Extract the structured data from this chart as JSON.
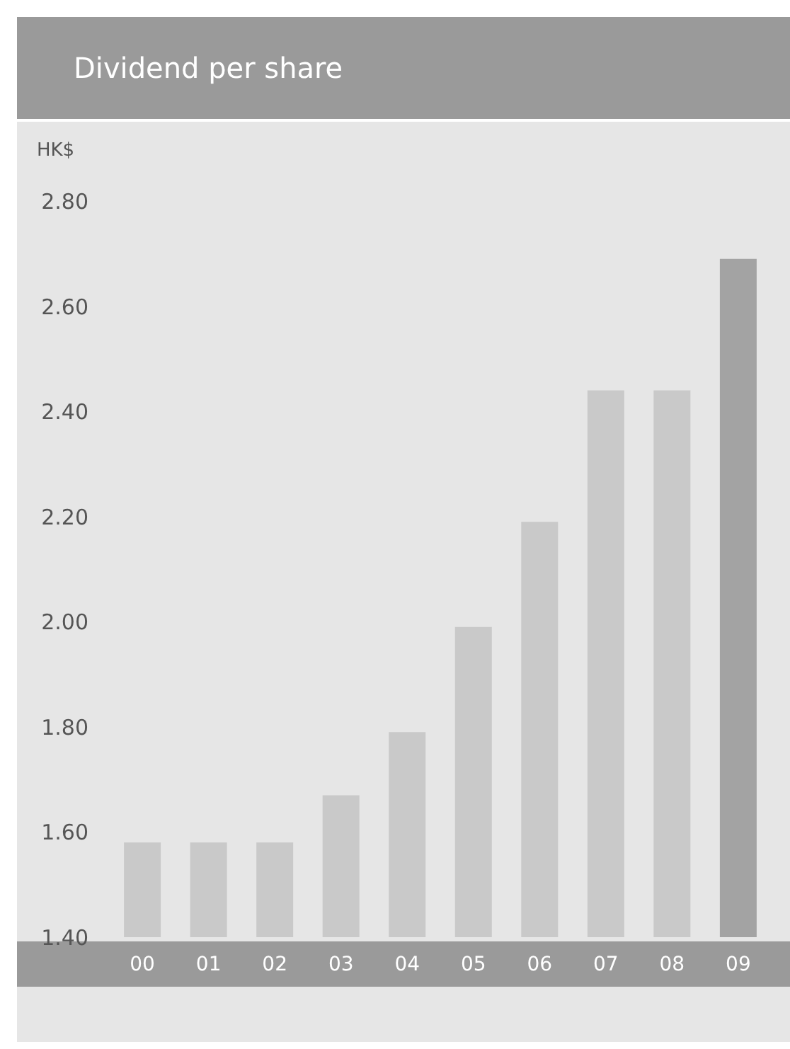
{
  "chart_data": {
    "type": "bar",
    "title": "Dividend per share",
    "ylabel": "HK$",
    "categories": [
      "00",
      "01",
      "02",
      "03",
      "04",
      "05",
      "06",
      "07",
      "08",
      "09"
    ],
    "values": [
      1.58,
      1.58,
      1.58,
      1.67,
      1.79,
      1.99,
      2.19,
      2.44,
      2.44,
      2.69
    ],
    "colors": [
      "#c9c9c9",
      "#c9c9c9",
      "#c9c9c9",
      "#c9c9c9",
      "#c9c9c9",
      "#c9c9c9",
      "#c9c9c9",
      "#c9c9c9",
      "#c9c9c9",
      "#a3a3a3"
    ],
    "ylim": [
      1.4,
      2.8
    ],
    "yticks": [
      {
        "value": 1.4,
        "label": "1.40"
      },
      {
        "value": 1.6,
        "label": "1.60"
      },
      {
        "value": 1.8,
        "label": "1.80"
      },
      {
        "value": 2.0,
        "label": "2.00"
      },
      {
        "value": 2.2,
        "label": "2.20"
      },
      {
        "value": 2.4,
        "label": "2.40"
      },
      {
        "value": 2.6,
        "label": "2.60"
      },
      {
        "value": 2.8,
        "label": "2.80"
      }
    ],
    "grid": false,
    "legend": false
  }
}
